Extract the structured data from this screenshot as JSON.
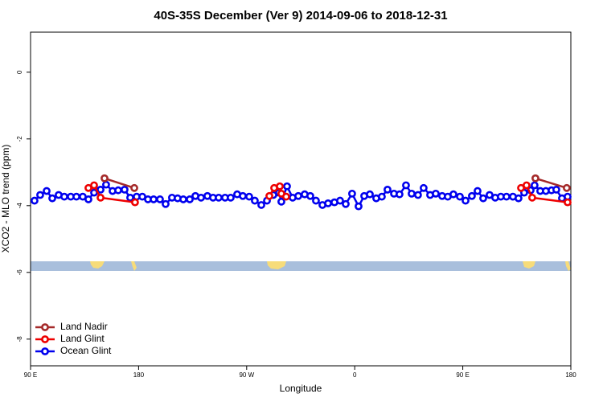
{
  "chart_data": {
    "type": "line",
    "title": "40S-35S December (Ver 9)   2014-09-06 to 2018-12-31",
    "xlabel": "Longitude",
    "ylabel": "XCO2 - MLO trend (ppm)",
    "xlim": [
      90,
      540
    ],
    "ylim": [
      -8.8,
      1.2
    ],
    "xticks": [
      {
        "value": 90,
        "label": "90 E"
      },
      180,
      {
        "value": 270,
        "label": "90 W"
      },
      {
        "value": 360,
        "label": "0"
      },
      {
        "value": 450,
        "label": "90 E"
      },
      {
        "value": 540,
        "label": "180"
      }
    ],
    "yticks": [
      0,
      -2,
      -4,
      -6,
      -8
    ],
    "legend": "bottom-left",
    "series": [
      {
        "name": "Ocean Glint",
        "color": "#0000ee",
        "x": [
          93.3,
          98.0,
          103.4,
          108.1,
          113.4,
          118.1,
          123.5,
          128.2,
          133.5,
          138.2,
          142.9,
          148.3,
          152.9,
          158.3,
          163.0,
          168.3,
          173.0,
          178.4,
          183.1,
          187.8,
          192.5,
          197.8,
          202.5,
          207.8,
          212.5,
          217.2,
          222.6,
          227.3,
          232.0,
          237.3,
          242.0,
          246.7,
          252.0,
          256.7,
          262.1,
          266.8,
          272.1,
          276.8,
          282.2,
          286.9,
          292.2,
          296.9,
          298.9,
          303.6,
          308.3,
          313.0,
          318.3,
          323.0,
          327.7,
          333.1,
          337.8,
          343.1,
          347.8,
          352.5,
          357.8,
          363.2,
          367.9,
          372.6,
          377.9,
          382.6,
          387.3,
          392.7,
          397.3,
          402.7,
          407.4,
          412.7,
          417.4,
          422.8,
          427.5,
          432.8,
          437.5,
          442.2,
          447.6,
          452.3,
          457.6,
          462.3,
          467.0,
          472.3,
          477.0,
          481.7,
          486.4,
          491.8,
          496.4,
          501.1,
          506.5,
          509.8,
          514.5,
          519.2,
          523.9,
          527.9,
          532.6,
          537.3
        ],
        "values": [
          -3.85,
          -3.68,
          -3.56,
          -3.78,
          -3.68,
          -3.73,
          -3.73,
          -3.73,
          -3.73,
          -3.81,
          -3.61,
          -3.52,
          -3.37,
          -3.56,
          -3.54,
          -3.52,
          -3.76,
          -3.73,
          -3.73,
          -3.81,
          -3.81,
          -3.81,
          -3.95,
          -3.76,
          -3.78,
          -3.81,
          -3.81,
          -3.71,
          -3.76,
          -3.71,
          -3.76,
          -3.76,
          -3.76,
          -3.76,
          -3.66,
          -3.71,
          -3.73,
          -3.85,
          -3.98,
          -3.85,
          -3.68,
          -3.61,
          -3.88,
          -3.42,
          -3.76,
          -3.71,
          -3.66,
          -3.71,
          -3.85,
          -3.98,
          -3.93,
          -3.9,
          -3.85,
          -3.95,
          -3.64,
          -4.02,
          -3.71,
          -3.66,
          -3.78,
          -3.73,
          -3.52,
          -3.64,
          -3.66,
          -3.39,
          -3.64,
          -3.68,
          -3.47,
          -3.68,
          -3.64,
          -3.71,
          -3.73,
          -3.66,
          -3.73,
          -3.85,
          -3.71,
          -3.56,
          -3.78,
          -3.68,
          -3.76,
          -3.73,
          -3.73,
          -3.73,
          -3.78,
          -3.61,
          -3.54,
          -3.39,
          -3.56,
          -3.56,
          -3.54,
          -3.52,
          -3.78,
          -3.73
        ]
      },
      {
        "name": "Land Glint",
        "color": "#ee0000",
        "x": [
          138.2,
          142.9,
          148.3,
          177.0,
          null,
          288.9,
          292.9,
          297.6,
          298.9,
          302.9,
          null,
          498.5,
          503.1,
          507.8,
          537.3
        ],
        "values": [
          -3.47,
          -3.39,
          -3.76,
          -3.9,
          null,
          -3.71,
          -3.47,
          -3.42,
          -3.64,
          -3.73,
          null,
          -3.47,
          -3.39,
          -3.76,
          -3.9
        ]
      },
      {
        "name": "Land Nadir",
        "color": "#a52a2a",
        "x": [
          151.6,
          176.4,
          null,
          510.5,
          536.6
        ],
        "values": [
          -3.18,
          -3.47,
          null,
          -3.18,
          -3.47
        ]
      }
    ]
  }
}
